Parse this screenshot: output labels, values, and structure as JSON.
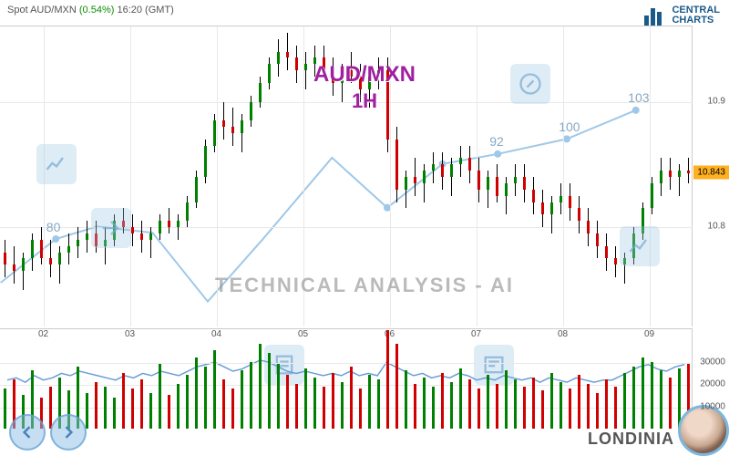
{
  "header": {
    "instrument": "Spot AUD/MXN",
    "pct_change": "(0.54%)",
    "time": "16:20 (GMT)"
  },
  "logo": {
    "line1": "CENTRAL",
    "line2": "CHARTS"
  },
  "titles": {
    "main": "AUD/MXN",
    "interval": "1H"
  },
  "tech_label": "TECHNICAL  ANALYSIS - AI",
  "londinia_label": "LONDINIA",
  "price_chart": {
    "ylim": [
      10.72,
      10.96
    ],
    "yticks": [
      10.8,
      10.9
    ],
    "x_categories": [
      "02",
      "03",
      "04",
      "05",
      "06",
      "07",
      "08",
      "09"
    ],
    "current_price": 10.843,
    "current_price_label": "10.843",
    "grid_color": "#e8e8e8",
    "up_color": "#008000",
    "down_color": "#d00000",
    "candles": [
      {
        "o": 10.78,
        "h": 10.79,
        "l": 10.76,
        "c": 10.77
      },
      {
        "o": 10.77,
        "h": 10.785,
        "l": 10.755,
        "c": 10.765
      },
      {
        "o": 10.765,
        "h": 10.78,
        "l": 10.75,
        "c": 10.775
      },
      {
        "o": 10.775,
        "h": 10.795,
        "l": 10.765,
        "c": 10.79
      },
      {
        "o": 10.79,
        "h": 10.8,
        "l": 10.77,
        "c": 10.775
      },
      {
        "o": 10.775,
        "h": 10.79,
        "l": 10.76,
        "c": 10.77
      },
      {
        "o": 10.77,
        "h": 10.785,
        "l": 10.755,
        "c": 10.78
      },
      {
        "o": 10.78,
        "h": 10.795,
        "l": 10.77,
        "c": 10.785
      },
      {
        "o": 10.785,
        "h": 10.8,
        "l": 10.775,
        "c": 10.79
      },
      {
        "o": 10.79,
        "h": 10.805,
        "l": 10.78,
        "c": 10.795
      },
      {
        "o": 10.795,
        "h": 10.805,
        "l": 10.78,
        "c": 10.785
      },
      {
        "o": 10.785,
        "h": 10.8,
        "l": 10.77,
        "c": 10.79
      },
      {
        "o": 10.79,
        "h": 10.81,
        "l": 10.785,
        "c": 10.805
      },
      {
        "o": 10.805,
        "h": 10.815,
        "l": 10.795,
        "c": 10.8
      },
      {
        "o": 10.8,
        "h": 10.81,
        "l": 10.785,
        "c": 10.795
      },
      {
        "o": 10.795,
        "h": 10.805,
        "l": 10.78,
        "c": 10.79
      },
      {
        "o": 10.79,
        "h": 10.8,
        "l": 10.775,
        "c": 10.795
      },
      {
        "o": 10.795,
        "h": 10.81,
        "l": 10.79,
        "c": 10.805
      },
      {
        "o": 10.805,
        "h": 10.815,
        "l": 10.795,
        "c": 10.8
      },
      {
        "o": 10.8,
        "h": 10.81,
        "l": 10.79,
        "c": 10.805
      },
      {
        "o": 10.805,
        "h": 10.825,
        "l": 10.8,
        "c": 10.82
      },
      {
        "o": 10.82,
        "h": 10.845,
        "l": 10.815,
        "c": 10.84
      },
      {
        "o": 10.84,
        "h": 10.87,
        "l": 10.835,
        "c": 10.865
      },
      {
        "o": 10.865,
        "h": 10.89,
        "l": 10.86,
        "c": 10.885
      },
      {
        "o": 10.885,
        "h": 10.9,
        "l": 10.87,
        "c": 10.88
      },
      {
        "o": 10.88,
        "h": 10.895,
        "l": 10.865,
        "c": 10.875
      },
      {
        "o": 10.875,
        "h": 10.89,
        "l": 10.86,
        "c": 10.885
      },
      {
        "o": 10.885,
        "h": 10.905,
        "l": 10.88,
        "c": 10.9
      },
      {
        "o": 10.9,
        "h": 10.92,
        "l": 10.895,
        "c": 10.915
      },
      {
        "o": 10.915,
        "h": 10.935,
        "l": 10.91,
        "c": 10.93
      },
      {
        "o": 10.93,
        "h": 10.95,
        "l": 10.92,
        "c": 10.94
      },
      {
        "o": 10.94,
        "h": 10.955,
        "l": 10.925,
        "c": 10.935
      },
      {
        "o": 10.935,
        "h": 10.945,
        "l": 10.915,
        "c": 10.925
      },
      {
        "o": 10.925,
        "h": 10.94,
        "l": 10.91,
        "c": 10.93
      },
      {
        "o": 10.93,
        "h": 10.945,
        "l": 10.92,
        "c": 10.935
      },
      {
        "o": 10.935,
        "h": 10.945,
        "l": 10.92,
        "c": 10.925
      },
      {
        "o": 10.925,
        "h": 10.935,
        "l": 10.905,
        "c": 10.915
      },
      {
        "o": 10.915,
        "h": 10.93,
        "l": 10.9,
        "c": 10.925
      },
      {
        "o": 10.925,
        "h": 10.94,
        "l": 10.915,
        "c": 10.92
      },
      {
        "o": 10.92,
        "h": 10.93,
        "l": 10.9,
        "c": 10.91
      },
      {
        "o": 10.91,
        "h": 10.925,
        "l": 10.895,
        "c": 10.92
      },
      {
        "o": 10.92,
        "h": 10.935,
        "l": 10.91,
        "c": 10.925
      },
      {
        "o": 10.925,
        "h": 10.935,
        "l": 10.86,
        "c": 10.87
      },
      {
        "o": 10.87,
        "h": 10.88,
        "l": 10.82,
        "c": 10.83
      },
      {
        "o": 10.83,
        "h": 10.845,
        "l": 10.815,
        "c": 10.84
      },
      {
        "o": 10.84,
        "h": 10.855,
        "l": 10.825,
        "c": 10.835
      },
      {
        "o": 10.835,
        "h": 10.85,
        "l": 10.82,
        "c": 10.845
      },
      {
        "o": 10.845,
        "h": 10.86,
        "l": 10.835,
        "c": 10.85
      },
      {
        "o": 10.85,
        "h": 10.86,
        "l": 10.83,
        "c": 10.84
      },
      {
        "o": 10.84,
        "h": 10.855,
        "l": 10.825,
        "c": 10.85
      },
      {
        "o": 10.85,
        "h": 10.865,
        "l": 10.84,
        "c": 10.855
      },
      {
        "o": 10.855,
        "h": 10.865,
        "l": 10.835,
        "c": 10.845
      },
      {
        "o": 10.845,
        "h": 10.855,
        "l": 10.82,
        "c": 10.83
      },
      {
        "o": 10.83,
        "h": 10.845,
        "l": 10.815,
        "c": 10.84
      },
      {
        "o": 10.84,
        "h": 10.85,
        "l": 10.82,
        "c": 10.825
      },
      {
        "o": 10.825,
        "h": 10.84,
        "l": 10.81,
        "c": 10.835
      },
      {
        "o": 10.835,
        "h": 10.85,
        "l": 10.825,
        "c": 10.84
      },
      {
        "o": 10.84,
        "h": 10.85,
        "l": 10.82,
        "c": 10.83
      },
      {
        "o": 10.83,
        "h": 10.84,
        "l": 10.81,
        "c": 10.82
      },
      {
        "o": 10.82,
        "h": 10.83,
        "l": 10.8,
        "c": 10.81
      },
      {
        "o": 10.81,
        "h": 10.825,
        "l": 10.795,
        "c": 10.82
      },
      {
        "o": 10.82,
        "h": 10.835,
        "l": 10.81,
        "c": 10.825
      },
      {
        "o": 10.825,
        "h": 10.835,
        "l": 10.805,
        "c": 10.815
      },
      {
        "o": 10.815,
        "h": 10.825,
        "l": 10.795,
        "c": 10.805
      },
      {
        "o": 10.805,
        "h": 10.815,
        "l": 10.785,
        "c": 10.795
      },
      {
        "o": 10.795,
        "h": 10.805,
        "l": 10.775,
        "c": 10.785
      },
      {
        "o": 10.785,
        "h": 10.795,
        "l": 10.765,
        "c": 10.775
      },
      {
        "o": 10.775,
        "h": 10.785,
        "l": 10.76,
        "c": 10.77
      },
      {
        "o": 10.77,
        "h": 10.78,
        "l": 10.755,
        "c": 10.775
      },
      {
        "o": 10.775,
        "h": 10.8,
        "l": 10.77,
        "c": 10.795
      },
      {
        "o": 10.795,
        "h": 10.82,
        "l": 10.79,
        "c": 10.815
      },
      {
        "o": 10.815,
        "h": 10.84,
        "l": 10.81,
        "c": 10.835
      },
      {
        "o": 10.835,
        "h": 10.855,
        "l": 10.825,
        "c": 10.845
      },
      {
        "o": 10.845,
        "h": 10.855,
        "l": 10.83,
        "c": 10.84
      },
      {
        "o": 10.84,
        "h": 10.85,
        "l": 10.825,
        "c": 10.845
      },
      {
        "o": 10.845,
        "h": 10.855,
        "l": 10.835,
        "c": 10.843
      }
    ],
    "overlay_line": {
      "color": "#9fc8e8",
      "points": [
        {
          "x": 0.0,
          "y": 10.755
        },
        {
          "x": 0.08,
          "y": 10.79
        },
        {
          "x": 0.14,
          "y": 10.8
        },
        {
          "x": 0.22,
          "y": 10.795
        },
        {
          "x": 0.3,
          "y": 10.74
        },
        {
          "x": 0.38,
          "y": 10.79
        },
        {
          "x": 0.48,
          "y": 10.855
        },
        {
          "x": 0.56,
          "y": 10.815
        },
        {
          "x": 0.64,
          "y": 10.85
        },
        {
          "x": 0.72,
          "y": 10.858
        },
        {
          "x": 0.82,
          "y": 10.87
        },
        {
          "x": 0.92,
          "y": 10.893
        }
      ],
      "markers": [
        {
          "x": 0.08,
          "y": 10.79,
          "label": "80"
        },
        {
          "x": 0.56,
          "y": 10.815,
          "label": ""
        },
        {
          "x": 0.64,
          "y": 10.85,
          "label": ""
        },
        {
          "x": 0.72,
          "y": 10.858,
          "label": "92"
        },
        {
          "x": 0.82,
          "y": 10.87,
          "label": "100"
        },
        {
          "x": 0.92,
          "y": 10.893,
          "label": "103"
        }
      ]
    }
  },
  "volume_chart": {
    "ymax": 45000,
    "yticks": [
      10000,
      20000,
      30000
    ],
    "line_color": "#6a9dd8",
    "up_color": "#008000",
    "down_color": "#d00000",
    "bars": [
      18000,
      22000,
      15000,
      26000,
      14000,
      19000,
      23000,
      17000,
      28000,
      16000,
      21000,
      19000,
      14000,
      25000,
      18000,
      22000,
      16000,
      29000,
      15000,
      20000,
      24000,
      32000,
      28000,
      35000,
      22000,
      18000,
      26000,
      30000,
      38000,
      34000,
      29000,
      24000,
      20000,
      27000,
      23000,
      19000,
      25000,
      21000,
      28000,
      18000,
      24000,
      22000,
      44000,
      38000,
      26000,
      20000,
      23000,
      19000,
      25000,
      21000,
      27000,
      22000,
      18000,
      24000,
      20000,
      26000,
      22000,
      19000,
      23000,
      17000,
      25000,
      21000,
      18000,
      24000,
      20000,
      16000,
      22000,
      19000,
      25000,
      28000,
      32000,
      30000,
      26000,
      23000,
      27000,
      29000
    ],
    "line": [
      22000,
      23000,
      21000,
      24000,
      22000,
      23000,
      25000,
      24000,
      26000,
      25000,
      24000,
      23000,
      22000,
      24000,
      23000,
      25000,
      24000,
      26000,
      25000,
      24000,
      26000,
      28000,
      29000,
      30000,
      28000,
      26000,
      27000,
      29000,
      31000,
      30000,
      28000,
      26000,
      25000,
      26000,
      25000,
      24000,
      25000,
      24000,
      26000,
      24000,
      25000,
      24000,
      30000,
      28000,
      26000,
      24000,
      25000,
      23000,
      24000,
      23000,
      25000,
      24000,
      22000,
      23000,
      22000,
      24000,
      23000,
      22000,
      23000,
      21000,
      23000,
      22000,
      21000,
      23000,
      22000,
      21000,
      22000,
      22000,
      24000,
      26000,
      28000,
      29000,
      27000,
      26000,
      28000,
      29000
    ]
  }
}
